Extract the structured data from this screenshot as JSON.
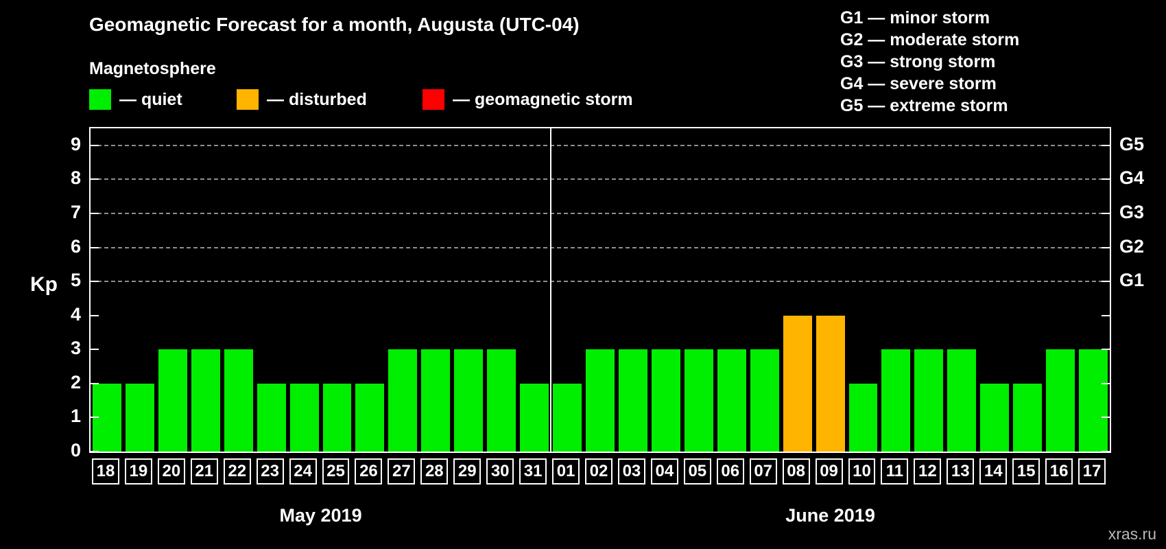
{
  "title": "Geomagnetic Forecast for a month, Augusta (UTC-04)",
  "subtitle": "Magnetosphere",
  "legend": {
    "items": [
      {
        "key": "quiet",
        "label": "— quiet",
        "color": "#00ee00"
      },
      {
        "key": "disturbed",
        "label": "— disturbed",
        "color": "#ffb400"
      },
      {
        "key": "storm",
        "label": "— geomagnetic storm",
        "color": "#ff0000"
      }
    ]
  },
  "g_legend": {
    "items": [
      "G1 — minor storm",
      "G2 — moderate storm",
      "G3 — strong storm",
      "G4 — severe storm",
      "G5 — extreme storm"
    ]
  },
  "watermark": "xras.ru",
  "chart_data": {
    "type": "bar",
    "title": "Geomagnetic Forecast for a month, Augusta (UTC-04)",
    "ylabel": "Kp",
    "ylim": [
      0,
      9.5
    ],
    "yticks": [
      0,
      1,
      2,
      3,
      4,
      5,
      6,
      7,
      8,
      9
    ],
    "right_axis": [
      {
        "label": "G1",
        "kp": 5
      },
      {
        "label": "G2",
        "kp": 6
      },
      {
        "label": "G3",
        "kp": 7
      },
      {
        "label": "G4",
        "kp": 8
      },
      {
        "label": "G5",
        "kp": 9
      }
    ],
    "gridlines_kp": [
      5,
      6,
      7,
      8,
      9
    ],
    "status_colors": {
      "quiet": "#00ee00",
      "disturbed": "#ffb400",
      "storm": "#ff0000"
    },
    "months": [
      {
        "label": "May 2019",
        "days": 14
      },
      {
        "label": "June 2019",
        "days": 17
      }
    ],
    "bars": [
      {
        "day": "18",
        "kp": 2,
        "status": "quiet"
      },
      {
        "day": "19",
        "kp": 2,
        "status": "quiet"
      },
      {
        "day": "20",
        "kp": 3,
        "status": "quiet"
      },
      {
        "day": "21",
        "kp": 3,
        "status": "quiet"
      },
      {
        "day": "22",
        "kp": 3,
        "status": "quiet"
      },
      {
        "day": "23",
        "kp": 2,
        "status": "quiet"
      },
      {
        "day": "24",
        "kp": 2,
        "status": "quiet"
      },
      {
        "day": "25",
        "kp": 2,
        "status": "quiet"
      },
      {
        "day": "26",
        "kp": 2,
        "status": "quiet"
      },
      {
        "day": "27",
        "kp": 3,
        "status": "quiet"
      },
      {
        "day": "28",
        "kp": 3,
        "status": "quiet"
      },
      {
        "day": "29",
        "kp": 3,
        "status": "quiet"
      },
      {
        "day": "30",
        "kp": 3,
        "status": "quiet"
      },
      {
        "day": "31",
        "kp": 2,
        "status": "quiet"
      },
      {
        "day": "01",
        "kp": 2,
        "status": "quiet"
      },
      {
        "day": "02",
        "kp": 3,
        "status": "quiet"
      },
      {
        "day": "03",
        "kp": 3,
        "status": "quiet"
      },
      {
        "day": "04",
        "kp": 3,
        "status": "quiet"
      },
      {
        "day": "05",
        "kp": 3,
        "status": "quiet"
      },
      {
        "day": "06",
        "kp": 3,
        "status": "quiet"
      },
      {
        "day": "07",
        "kp": 3,
        "status": "quiet"
      },
      {
        "day": "08",
        "kp": 4,
        "status": "disturbed"
      },
      {
        "day": "09",
        "kp": 4,
        "status": "disturbed"
      },
      {
        "day": "10",
        "kp": 2,
        "status": "quiet"
      },
      {
        "day": "11",
        "kp": 3,
        "status": "quiet"
      },
      {
        "day": "12",
        "kp": 3,
        "status": "quiet"
      },
      {
        "day": "13",
        "kp": 3,
        "status": "quiet"
      },
      {
        "day": "14",
        "kp": 2,
        "status": "quiet"
      },
      {
        "day": "15",
        "kp": 2,
        "status": "quiet"
      },
      {
        "day": "16",
        "kp": 3,
        "status": "quiet"
      },
      {
        "day": "17",
        "kp": 3,
        "status": "quiet"
      }
    ]
  }
}
